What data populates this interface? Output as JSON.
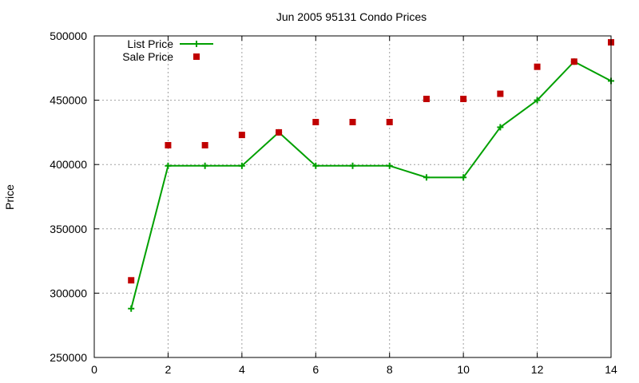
{
  "chart_data": {
    "type": "line",
    "title": "Jun 2005 95131 Condo Prices",
    "xlabel": "",
    "ylabel": "Price",
    "xlim": [
      0,
      14
    ],
    "ylim": [
      250000,
      500000
    ],
    "xticks": [
      0,
      2,
      4,
      6,
      8,
      10,
      12,
      14
    ],
    "xtick_labels": [
      "0",
      "2",
      "4",
      "6",
      "8",
      "10",
      "12",
      "14"
    ],
    "yticks": [
      250000,
      300000,
      350000,
      400000,
      450000,
      500000
    ],
    "ytick_labels": [
      "250000",
      "300000",
      "350000",
      "400000",
      "450000",
      "500000"
    ],
    "grid": true,
    "legend_position": "top-left",
    "series": [
      {
        "name": "List Price",
        "style": "linespoints",
        "marker": "plus",
        "color": "#00a000",
        "x": [
          1,
          2,
          3,
          4,
          5,
          6,
          7,
          8,
          9,
          10,
          11,
          12,
          13,
          14
        ],
        "y": [
          288000,
          399000,
          399000,
          399000,
          425000,
          399000,
          399000,
          399000,
          390000,
          390000,
          429000,
          450000,
          480000,
          465000
        ]
      },
      {
        "name": "Sale Price",
        "style": "points",
        "marker": "square",
        "color": "#c00000",
        "x": [
          1,
          2,
          3,
          4,
          5,
          6,
          7,
          8,
          9,
          10,
          11,
          12,
          13,
          14
        ],
        "y": [
          310000,
          415000,
          415000,
          423000,
          425000,
          433000,
          433000,
          433000,
          451000,
          451000,
          455000,
          476000,
          480000,
          495000
        ]
      }
    ]
  }
}
